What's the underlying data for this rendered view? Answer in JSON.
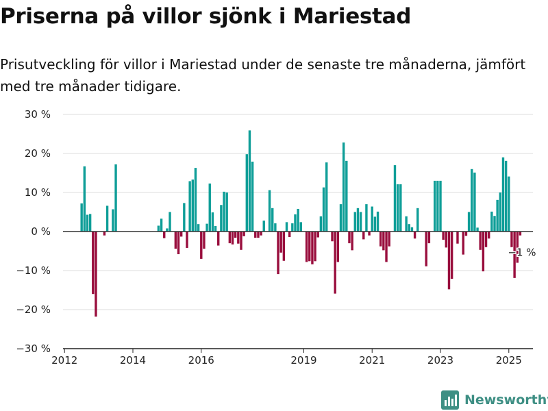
{
  "title": "Priserna på villor sjönk i Mariestad",
  "subtitle": "Prisutveckling för villor i Mariestad under de senaste tre månaderna, jämfört med tre månader tidigare.",
  "brand": {
    "name": "Newsworthy",
    "icon": "bar-chart-logo-icon",
    "color": "#3e8f84"
  },
  "colors": {
    "positive": "#0f9e98",
    "negative": "#990e3d",
    "grid": "#dddddd",
    "zero_line": "#333333"
  },
  "chart_data": {
    "type": "bar",
    "title": "Priserna på villor sjönk i Mariestad",
    "xlabel": "",
    "ylabel": "",
    "ylim": [
      -30,
      30
    ],
    "xlim": [
      "2011-12-15",
      "2025-09-15"
    ],
    "y_ticks": [
      30,
      20,
      10,
      0,
      -10,
      -20,
      -30
    ],
    "y_tick_labels": [
      "30 %",
      "20 %",
      "10 %",
      "0 %",
      "−10 %",
      "−20 %",
      "−30 %"
    ],
    "x_ticks": [
      "2012-01",
      "2014-01",
      "2016-01",
      "2019-01",
      "2021-01",
      "2023-01",
      "2025-01"
    ],
    "x_tick_labels": [
      "2012",
      "2014",
      "2016",
      "2019",
      "2021",
      "2023",
      "2025"
    ],
    "grid": true,
    "legend": "none",
    "annotation": {
      "text": "−1 %",
      "x": "2025-05",
      "y": -1
    },
    "x": [
      "2012-07",
      "2012-08",
      "2012-09",
      "2012-10",
      "2012-11",
      "2012-12",
      "2013-01",
      "2013-02",
      "2013-03",
      "2013-04",
      "2013-05",
      "2013-06",
      "2013-07",
      "2014-10",
      "2014-11",
      "2014-12",
      "2015-01",
      "2015-02",
      "2015-03",
      "2015-04",
      "2015-05",
      "2015-06",
      "2015-07",
      "2015-08",
      "2015-09",
      "2015-10",
      "2015-11",
      "2015-12",
      "2016-01",
      "2016-02",
      "2016-03",
      "2016-04",
      "2016-05",
      "2016-06",
      "2016-07",
      "2016-08",
      "2016-09",
      "2016-10",
      "2016-11",
      "2016-12",
      "2017-01",
      "2017-02",
      "2017-03",
      "2017-04",
      "2017-05",
      "2017-06",
      "2017-07",
      "2017-08",
      "2017-09",
      "2017-10",
      "2017-11",
      "2017-12",
      "2018-01",
      "2018-02",
      "2018-03",
      "2018-04",
      "2018-05",
      "2018-06",
      "2018-07",
      "2018-08",
      "2018-09",
      "2018-10",
      "2018-11",
      "2018-12",
      "2019-01",
      "2019-02",
      "2019-03",
      "2019-04",
      "2019-05",
      "2019-06",
      "2019-07",
      "2019-08",
      "2019-09",
      "2019-10",
      "2019-11",
      "2019-12",
      "2020-01",
      "2020-02",
      "2020-03",
      "2020-04",
      "2020-05",
      "2020-06",
      "2020-07",
      "2020-08",
      "2020-09",
      "2020-10",
      "2020-11",
      "2020-12",
      "2021-01",
      "2021-02",
      "2021-03",
      "2021-04",
      "2021-05",
      "2021-06",
      "2021-07",
      "2021-08",
      "2021-09",
      "2021-10",
      "2021-11",
      "2021-12",
      "2022-01",
      "2022-02",
      "2022-03",
      "2022-04",
      "2022-05",
      "2022-06",
      "2022-07",
      "2022-08",
      "2022-09",
      "2022-10",
      "2022-11",
      "2022-12",
      "2023-01",
      "2023-02",
      "2023-03",
      "2023-04",
      "2023-05",
      "2023-06",
      "2023-07",
      "2023-08",
      "2023-09",
      "2023-10",
      "2023-11",
      "2023-12",
      "2024-01",
      "2024-02",
      "2024-03",
      "2024-04",
      "2024-05",
      "2024-06",
      "2024-07",
      "2024-08",
      "2024-09",
      "2024-10",
      "2024-11",
      "2024-12",
      "2025-01",
      "2025-02",
      "2025-03",
      "2025-04",
      "2025-05"
    ],
    "values": [
      7.2,
      16.7,
      4.3,
      4.5,
      -16,
      -21.8,
      0,
      0,
      -1,
      6.6,
      0,
      5.7,
      17.2,
      1.5,
      3.3,
      -1.7,
      0.8,
      5,
      0,
      -4.4,
      -5.8,
      -1.3,
      7.3,
      -4.2,
      12.9,
      13.3,
      16.3,
      1.9,
      -7,
      -4.4,
      2,
      12.3,
      4.9,
      1.4,
      -3.6,
      6.8,
      10.2,
      10,
      -3,
      -3.3,
      -1.6,
      -3.1,
      -4.7,
      -1.2,
      19.8,
      25.9,
      17.9,
      -1.6,
      -1.6,
      -1,
      2.8,
      0,
      10.6,
      6,
      2.1,
      -10.9,
      -5.4,
      -7.5,
      2.4,
      -1.4,
      2.1,
      4.4,
      5.8,
      2.4,
      0,
      -7.8,
      -7.6,
      -8.4,
      -7.6,
      -1.5,
      3.9,
      11.3,
      17.7,
      0,
      -2.5,
      -15.9,
      -7.8,
      7,
      22.8,
      18.1,
      -3,
      -4.8,
      5,
      6,
      5,
      -2,
      7,
      -1,
      6.4,
      3.8,
      5.1,
      -3.8,
      -4.8,
      -7.8,
      -3.8,
      0,
      17,
      12.1,
      12.1,
      0,
      3.9,
      1.9,
      1.1,
      -1.8,
      6,
      0,
      0,
      -8.9,
      -3,
      0,
      13,
      13,
      13,
      -2.1,
      -4.1,
      -14.8,
      -12.1,
      0,
      -3.1,
      0,
      -5.9,
      -1.1,
      5,
      16,
      15.1,
      1,
      -4.7,
      -10.2,
      -4,
      -1.8,
      5.1,
      4,
      8.1,
      10,
      19,
      18.1,
      14.1,
      -4,
      -11.9,
      -8,
      -1
    ]
  }
}
